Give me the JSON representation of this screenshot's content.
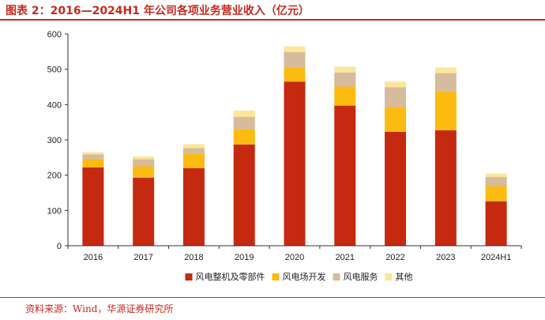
{
  "header": {
    "title": "图表 2：2016—2024H1 年公司各项业务营业收入（亿元）"
  },
  "footer": {
    "source": "资料来源：Wind，华源证券研究所"
  },
  "chart_data": {
    "type": "bar",
    "stacked": true,
    "categories": [
      "2016",
      "2017",
      "2018",
      "2019",
      "2020",
      "2021",
      "2022",
      "2023",
      "2024H1"
    ],
    "series": [
      {
        "name": "风电整机及零部件",
        "color": "#c52a10",
        "values": [
          222,
          193,
          220,
          287,
          465,
          397,
          323,
          327,
          126
        ]
      },
      {
        "name": "风电场开发",
        "color": "#fbbb11",
        "values": [
          23,
          32,
          40,
          43,
          39,
          54,
          70,
          110,
          43
        ]
      },
      {
        "name": "风电服务",
        "color": "#d6bb9c",
        "values": [
          14,
          20,
          17,
          35,
          45,
          40,
          56,
          52,
          26
        ]
      },
      {
        "name": "其他",
        "color": "#fbe69a",
        "values": [
          6,
          8,
          11,
          18,
          16,
          16,
          16,
          16,
          9
        ]
      }
    ],
    "ylim": [
      0,
      600
    ],
    "yticks": [
      "0",
      "100",
      "200",
      "300",
      "400",
      "500",
      "600"
    ],
    "legend_position": "bottom",
    "grid": false
  }
}
